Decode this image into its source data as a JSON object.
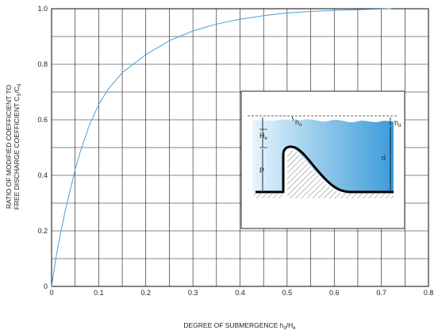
{
  "chart_data": {
    "type": "line",
    "xlabel": "DEGREE OF SUBMERGENCE h",
    "xlabel_sub": "d",
    "xlabel_tail": "/H",
    "xlabel_sub2": "e",
    "ylabel_line1": "RATIO OF MODIFIED COEFFICIENT TO",
    "ylabel_line2": "FREE DISCHARGE COEFFICIENT  C",
    "ylabel_sub1": "S",
    "ylabel_mid": "/C",
    "ylabel_sub2": "d",
    "xlim": [
      0,
      0.8
    ],
    "ylim": [
      0,
      1.0
    ],
    "x_ticks": [
      "0",
      "0.1",
      "0.2",
      "0.3",
      "0.4",
      "0.5",
      "0.6",
      "0.7",
      "0.8"
    ],
    "y_ticks": [
      "0",
      "0.2",
      "0.4",
      "0.6",
      "0.8",
      "1.0"
    ],
    "x_tick_values": [
      0,
      0.1,
      0.2,
      0.3,
      0.4,
      0.5,
      0.6,
      0.7,
      0.8
    ],
    "y_tick_values": [
      0,
      0.2,
      0.4,
      0.6,
      0.8,
      1.0
    ],
    "grid": true,
    "series": [
      {
        "color": "#4a9fd8",
        "x": [
          0,
          0.01,
          0.02,
          0.03,
          0.04,
          0.05,
          0.06,
          0.08,
          0.1,
          0.12,
          0.15,
          0.2,
          0.25,
          0.3,
          0.35,
          0.4,
          0.45,
          0.5,
          0.55,
          0.6,
          0.65,
          0.7,
          0.72
        ],
        "y": [
          0,
          0.11,
          0.2,
          0.28,
          0.35,
          0.42,
          0.48,
          0.58,
          0.655,
          0.71,
          0.77,
          0.835,
          0.885,
          0.92,
          0.945,
          0.962,
          0.975,
          0.985,
          0.99,
          0.994,
          0.997,
          0.999,
          1.0
        ]
      }
    ],
    "inset": {
      "labels": {
        "ho": "h",
        "ho_sub": "o",
        "hd": "h",
        "hd_sub": "d",
        "he": "H",
        "he_sub": "e",
        "p": "P",
        "d": "d"
      }
    }
  }
}
